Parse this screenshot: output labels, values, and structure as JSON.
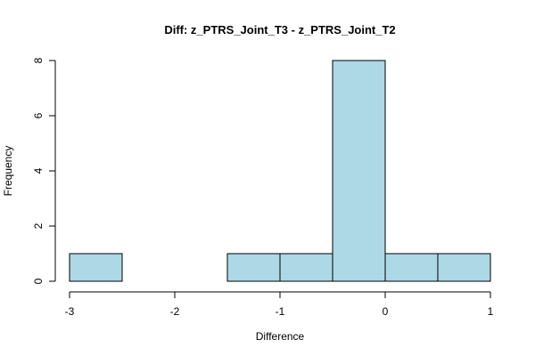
{
  "chart_data": {
    "type": "bar",
    "title": "Diff: z_PTRS_Joint_T3 - z_PTRS_Joint_T2",
    "xlabel": "Difference",
    "ylabel": "Frequency",
    "bins": [
      {
        "x0": -3.0,
        "x1": -2.5,
        "count": 1
      },
      {
        "x0": -2.5,
        "x1": -2.0,
        "count": 0
      },
      {
        "x0": -2.0,
        "x1": -1.5,
        "count": 0
      },
      {
        "x0": -1.5,
        "x1": -1.0,
        "count": 1
      },
      {
        "x0": -1.0,
        "x1": -0.5,
        "count": 1
      },
      {
        "x0": -0.5,
        "x1": 0.0,
        "count": 8
      },
      {
        "x0": 0.0,
        "x1": 0.5,
        "count": 1
      },
      {
        "x0": 0.5,
        "x1": 1.0,
        "count": 1
      }
    ],
    "xlim": [
      -3,
      1
    ],
    "ylim": [
      0,
      8
    ],
    "x_ticks": [
      -3,
      -2,
      -1,
      0,
      1
    ],
    "y_ticks": [
      0,
      2,
      4,
      6,
      8
    ],
    "bar_color": "#add8e6",
    "grid": false,
    "legend": "none"
  }
}
